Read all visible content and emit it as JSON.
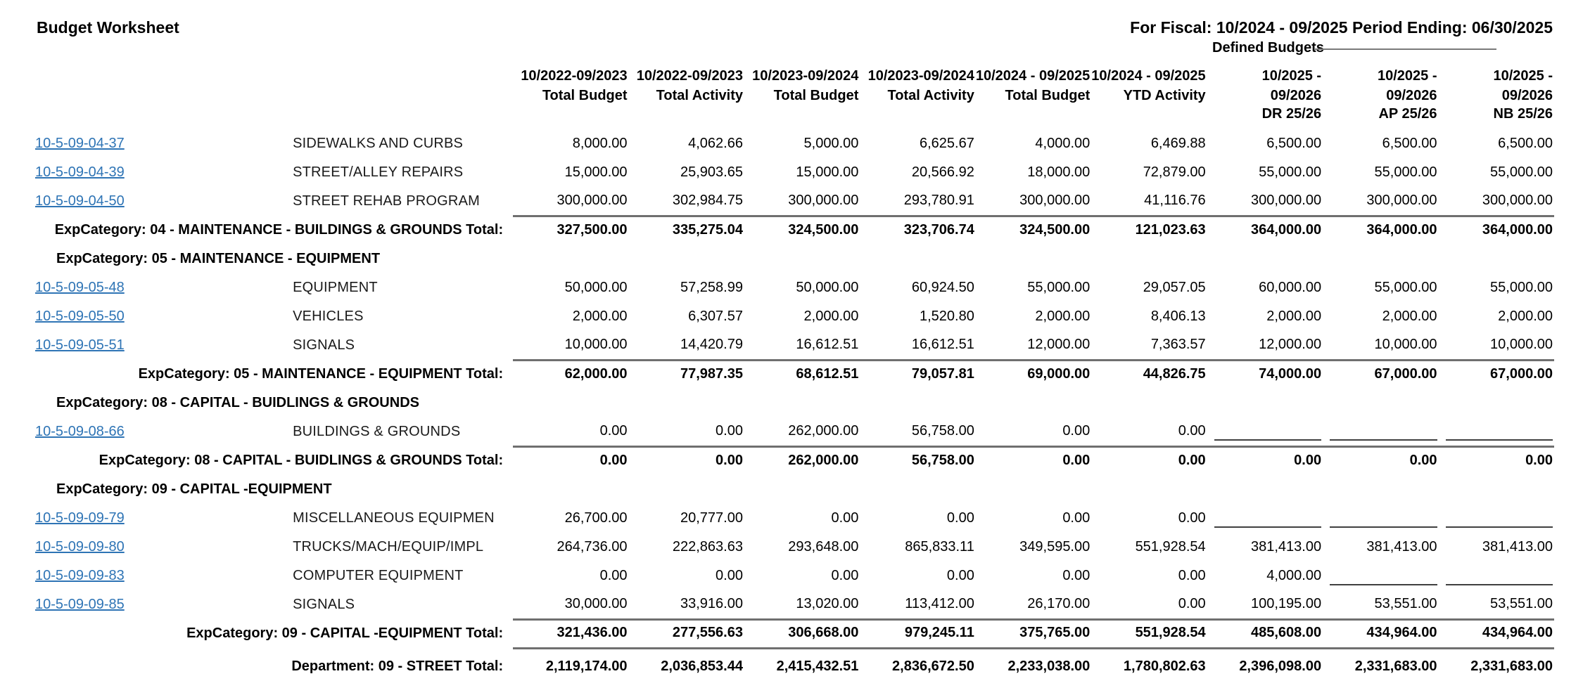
{
  "header": {
    "title": "Budget Worksheet",
    "fiscal_line": "For Fiscal: 10/2024 - 09/2025 Period Ending: 06/30/2025",
    "defined_budgets_label": "Defined Budgets"
  },
  "table": {
    "columns": [
      {
        "period": "10/2022-09/2023",
        "sub": "Total Budget",
        "sub2": ""
      },
      {
        "period": "10/2022-09/2023",
        "sub": "Total Activity",
        "sub2": ""
      },
      {
        "period": "10/2023-09/2024",
        "sub": "Total Budget",
        "sub2": ""
      },
      {
        "period": "10/2023-09/2024",
        "sub": "Total Activity",
        "sub2": ""
      },
      {
        "period": "10/2024 - 09/2025",
        "sub": "Total Budget",
        "sub2": ""
      },
      {
        "period": "10/2024 - 09/2025",
        "sub": "YTD Activity",
        "sub2": ""
      },
      {
        "period": "10/2025 -",
        "sub": "09/2026",
        "sub2": "DR 25/26"
      },
      {
        "period": "10/2025 -",
        "sub": "09/2026",
        "sub2": "AP 25/26"
      },
      {
        "period": "10/2025 -",
        "sub": "09/2026",
        "sub2": "NB 25/26"
      }
    ],
    "rows": [
      {
        "type": "account",
        "account": "10-5-09-04-37",
        "desc": "SIDEWALKS AND CURBS",
        "values": [
          "8,000.00",
          "4,062.66",
          "5,000.00",
          "6,625.67",
          "4,000.00",
          "6,469.88",
          "6,500.00",
          "6,500.00",
          "6,500.00"
        ]
      },
      {
        "type": "account",
        "account": "10-5-09-04-39",
        "desc": "STREET/ALLEY REPAIRS",
        "values": [
          "15,000.00",
          "25,903.65",
          "15,000.00",
          "20,566.92",
          "18,000.00",
          "72,879.00",
          "55,000.00",
          "55,000.00",
          "55,000.00"
        ]
      },
      {
        "type": "account",
        "account": "10-5-09-04-50",
        "desc": "STREET REHAB PROGRAM",
        "values": [
          "300,000.00",
          "302,984.75",
          "300,000.00",
          "293,780.91",
          "300,000.00",
          "41,116.76",
          "300,000.00",
          "300,000.00",
          "300,000.00"
        ]
      },
      {
        "type": "total",
        "label": "ExpCategory: 04 - MAINTENANCE - BUILDINGS & GROUNDS Total:",
        "values": [
          "327,500.00",
          "335,275.04",
          "324,500.00",
          "323,706.74",
          "324,500.00",
          "121,023.63",
          "364,000.00",
          "364,000.00",
          "364,000.00"
        ]
      },
      {
        "type": "section",
        "label": "ExpCategory: 05 - MAINTENANCE - EQUIPMENT"
      },
      {
        "type": "account",
        "account": "10-5-09-05-48",
        "desc": "EQUIPMENT",
        "values": [
          "50,000.00",
          "57,258.99",
          "50,000.00",
          "60,924.50",
          "55,000.00",
          "29,057.05",
          "60,000.00",
          "55,000.00",
          "55,000.00"
        ]
      },
      {
        "type": "account",
        "account": "10-5-09-05-50",
        "desc": "VEHICLES",
        "values": [
          "2,000.00",
          "6,307.57",
          "2,000.00",
          "1,520.80",
          "2,000.00",
          "8,406.13",
          "2,000.00",
          "2,000.00",
          "2,000.00"
        ]
      },
      {
        "type": "account",
        "account": "10-5-09-05-51",
        "desc": "SIGNALS",
        "values": [
          "10,000.00",
          "14,420.79",
          "16,612.51",
          "16,612.51",
          "12,000.00",
          "7,363.57",
          "12,000.00",
          "10,000.00",
          "10,000.00"
        ]
      },
      {
        "type": "total",
        "label": "ExpCategory: 05 - MAINTENANCE - EQUIPMENT Total:",
        "values": [
          "62,000.00",
          "77,987.35",
          "68,612.51",
          "79,057.81",
          "69,000.00",
          "44,826.75",
          "74,000.00",
          "67,000.00",
          "67,000.00"
        ]
      },
      {
        "type": "section",
        "label": "ExpCategory: 08 - CAPITAL - BUIDLINGS & GROUNDS"
      },
      {
        "type": "account",
        "account": "10-5-09-08-66",
        "desc": "BUILDINGS & GROUNDS",
        "values": [
          "0.00",
          "0.00",
          "262,000.00",
          "56,758.00",
          "0.00",
          "0.00",
          null,
          null,
          null
        ]
      },
      {
        "type": "total",
        "label": "ExpCategory: 08 - CAPITAL - BUIDLINGS & GROUNDS Total:",
        "values": [
          "0.00",
          "0.00",
          "262,000.00",
          "56,758.00",
          "0.00",
          "0.00",
          "0.00",
          "0.00",
          "0.00"
        ]
      },
      {
        "type": "section",
        "label": "ExpCategory: 09 - CAPITAL -EQUIPMENT"
      },
      {
        "type": "account",
        "account": "10-5-09-09-79",
        "desc": "MISCELLANEOUS EQUIPMEN",
        "values": [
          "26,700.00",
          "20,777.00",
          "0.00",
          "0.00",
          "0.00",
          "0.00",
          null,
          null,
          null
        ]
      },
      {
        "type": "account",
        "account": "10-5-09-09-80",
        "desc": "TRUCKS/MACH/EQUIP/IMPL",
        "values": [
          "264,736.00",
          "222,863.63",
          "293,648.00",
          "865,833.11",
          "349,595.00",
          "551,928.54",
          "381,413.00",
          "381,413.00",
          "381,413.00"
        ]
      },
      {
        "type": "account",
        "account": "10-5-09-09-83",
        "desc": "COMPUTER EQUIPMENT",
        "values": [
          "0.00",
          "0.00",
          "0.00",
          "0.00",
          "0.00",
          "0.00",
          "4,000.00",
          null,
          null
        ]
      },
      {
        "type": "account",
        "account": "10-5-09-09-85",
        "desc": "SIGNALS",
        "values": [
          "30,000.00",
          "33,916.00",
          "13,020.00",
          "113,412.00",
          "26,170.00",
          "0.00",
          "100,195.00",
          "53,551.00",
          "53,551.00"
        ]
      },
      {
        "type": "total",
        "label": "ExpCategory: 09 - CAPITAL -EQUIPMENT Total:",
        "values": [
          "321,436.00",
          "277,556.63",
          "306,668.00",
          "979,245.11",
          "375,765.00",
          "551,928.54",
          "485,608.00",
          "434,964.00",
          "434,964.00"
        ]
      },
      {
        "type": "dept",
        "label": "Department: 09 - STREET Total:",
        "values": [
          "2,119,174.00",
          "2,036,853.44",
          "2,415,432.51",
          "2,836,672.50",
          "2,233,038.00",
          "1,780,802.63",
          "2,396,098.00",
          "2,331,683.00",
          "2,331,683.00"
        ]
      }
    ]
  }
}
